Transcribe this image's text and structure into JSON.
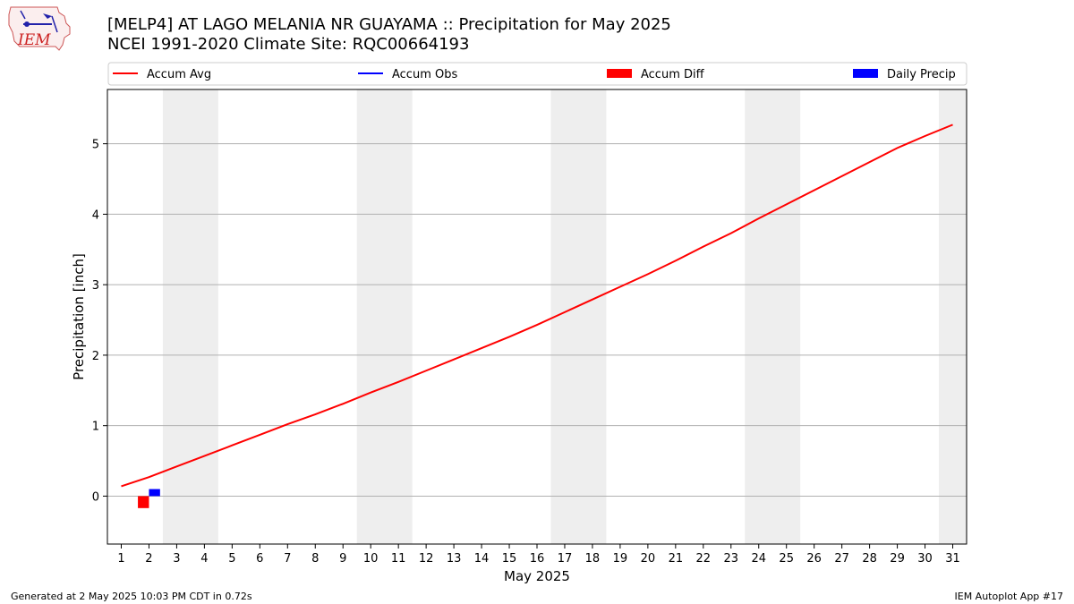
{
  "header": {
    "title_line1": "[MELP4] AT LAGO MELANIA NR GUAYAMA :: Precipitation for May 2025",
    "title_line2": "NCEI 1991-2020 Climate Site: RQC00664193",
    "logo_text": "IEM"
  },
  "footer": {
    "left": "Generated at 2 May 2025 10:03 PM CDT in 0.72s",
    "right": "IEM Autoplot App #17"
  },
  "chart_data": {
    "type": "line",
    "xlabel": "May 2025",
    "ylabel": "Precipitation [inch]",
    "xlim": [
      0.5,
      31.5
    ],
    "ylim": [
      -0.68,
      5.77
    ],
    "x_ticks": [
      1,
      2,
      3,
      4,
      5,
      6,
      7,
      8,
      9,
      10,
      11,
      12,
      13,
      14,
      15,
      16,
      17,
      18,
      19,
      20,
      21,
      22,
      23,
      24,
      25,
      26,
      27,
      28,
      29,
      30,
      31
    ],
    "y_ticks": [
      0,
      1,
      2,
      3,
      4,
      5
    ],
    "grid": "y",
    "legend_placement": "top",
    "weekend_shading": [
      [
        3,
        4
      ],
      [
        10,
        11
      ],
      [
        17,
        18
      ],
      [
        24,
        25
      ],
      [
        31,
        31
      ]
    ],
    "series": [
      {
        "name": "Accum Avg",
        "kind": "line",
        "color": "#ff0000",
        "x": [
          1,
          2,
          3,
          4,
          5,
          6,
          7,
          8,
          9,
          10,
          11,
          12,
          13,
          14,
          15,
          16,
          17,
          18,
          19,
          20,
          21,
          22,
          23,
          24,
          25,
          26,
          27,
          28,
          29,
          30,
          31
        ],
        "values": [
          0.14,
          0.27,
          0.42,
          0.57,
          0.72,
          0.87,
          1.02,
          1.16,
          1.31,
          1.47,
          1.62,
          1.78,
          1.94,
          2.1,
          2.26,
          2.43,
          2.61,
          2.79,
          2.97,
          3.15,
          3.34,
          3.54,
          3.73,
          3.94,
          4.14,
          4.34,
          4.54,
          4.74,
          4.94,
          5.11,
          5.27
        ]
      },
      {
        "name": "Accum Obs",
        "kind": "line",
        "color": "#0000ff",
        "x": [],
        "values": []
      },
      {
        "name": "Accum Diff",
        "kind": "bar",
        "color": "#ff0000",
        "x": [
          2
        ],
        "values": [
          -0.17
        ]
      },
      {
        "name": "Daily Precip",
        "kind": "bar",
        "color": "#0000ff",
        "x": [
          2
        ],
        "values": [
          0.1
        ]
      }
    ]
  }
}
